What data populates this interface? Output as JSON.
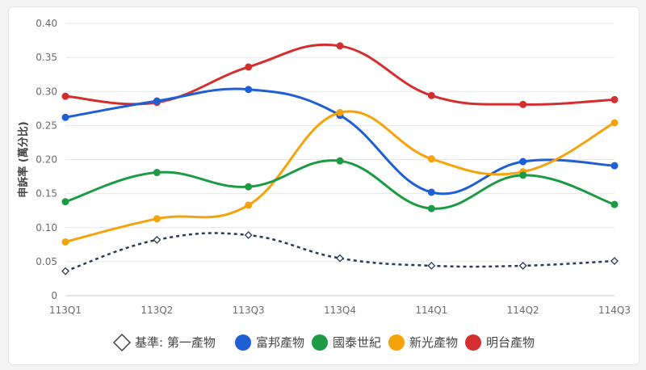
{
  "chart_data": {
    "type": "line",
    "ylabel": "申訴率 (萬分比)",
    "xlabel": "",
    "ylim": [
      0,
      0.4
    ],
    "y_ticks": [
      "0",
      "0.05",
      "0.10",
      "0.15",
      "0.20",
      "0.25",
      "0.30",
      "0.35",
      "0.40"
    ],
    "categories": [
      "113Q1",
      "113Q2",
      "113Q3",
      "113Q4",
      "114Q1",
      "114Q2",
      "114Q3"
    ],
    "grid": true,
    "legend_position": "bottom",
    "series": [
      {
        "name": "明台產物",
        "color": "#d32f2f",
        "values": [
          0.293,
          0.284,
          0.336,
          0.367,
          0.294,
          0.281,
          0.288
        ]
      },
      {
        "name": "富邦產物",
        "color": "#1f5fd6",
        "values": [
          0.262,
          0.286,
          0.303,
          0.265,
          0.152,
          0.197,
          0.191
        ]
      },
      {
        "name": "新光產物",
        "color": "#f5a30a",
        "values": [
          0.079,
          0.113,
          0.133,
          0.269,
          0.201,
          0.182,
          0.254
        ]
      },
      {
        "name": "國泰世紀",
        "color": "#1d9a44",
        "values": [
          0.138,
          0.181,
          0.16,
          0.198,
          0.128,
          0.177,
          0.134
        ]
      },
      {
        "name": "基準: 第一產物",
        "color": "#2b3a55",
        "dashed": true,
        "marker": "diamond",
        "values": [
          0.036,
          0.082,
          0.089,
          0.055,
          0.044,
          0.044,
          0.051
        ]
      }
    ],
    "legend_order": [
      "基準: 第一產物",
      "富邦產物",
      "國泰世紀",
      "新光產物",
      "明台產物"
    ]
  }
}
